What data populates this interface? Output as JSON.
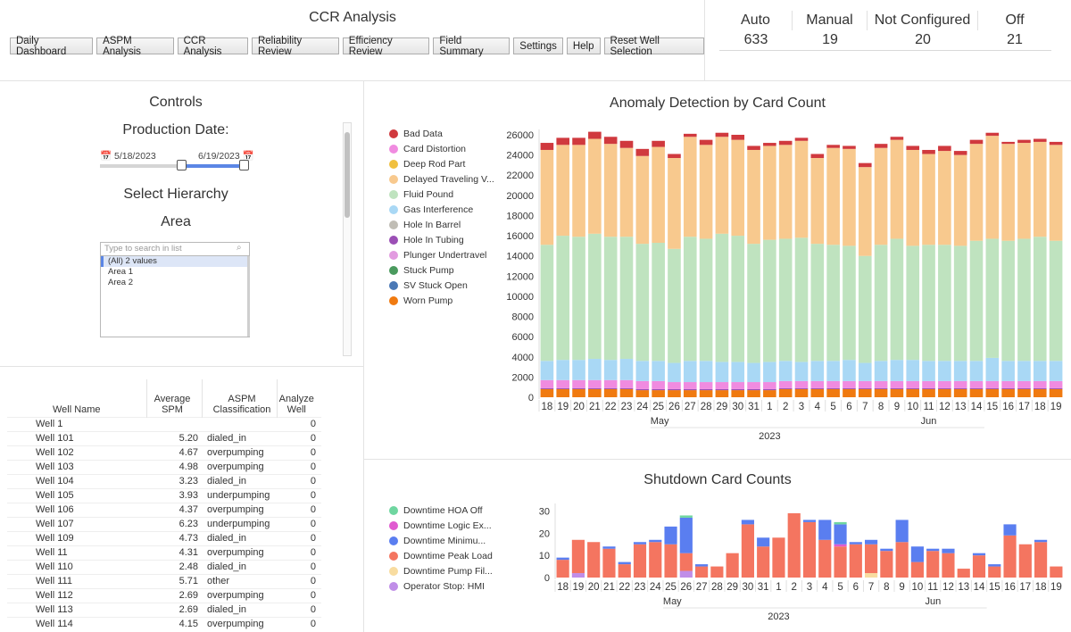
{
  "app_title": "CCR Analysis",
  "nav": [
    "Daily Dashboard",
    "ASPM Analysis",
    "CCR Analysis",
    "Reliability Review",
    "Efficiency Review",
    "Field Summary",
    "Settings",
    "Help",
    "Reset Well Selection"
  ],
  "status": {
    "headers": [
      "Auto",
      "Manual",
      "Not Configured",
      "Off"
    ],
    "values": [
      "633",
      "19",
      "20",
      "21"
    ]
  },
  "controls": {
    "title": "Controls",
    "production_date_label": "Production Date:",
    "date_start": "5/18/2023",
    "date_end": "6/19/2023",
    "hierarchy_label": "Select Hierarchy",
    "area_label": "Area",
    "search_placeholder": "Type to search in list",
    "list_items": [
      "(All) 2 values",
      "Area 1",
      "Area 2"
    ]
  },
  "table": {
    "headers": [
      "Well Name",
      "Average SPM",
      "ASPM Classification",
      "Analyze Well"
    ],
    "rows": [
      [
        "Well 1",
        "",
        "",
        "0"
      ],
      [
        "Well 101",
        "5.20",
        "dialed_in",
        "0"
      ],
      [
        "Well 102",
        "4.67",
        "overpumping",
        "0"
      ],
      [
        "Well 103",
        "4.98",
        "overpumping",
        "0"
      ],
      [
        "Well 104",
        "3.23",
        "dialed_in",
        "0"
      ],
      [
        "Well 105",
        "3.93",
        "underpumping",
        "0"
      ],
      [
        "Well 106",
        "4.37",
        "overpumping",
        "0"
      ],
      [
        "Well 107",
        "6.23",
        "underpumping",
        "0"
      ],
      [
        "Well 109",
        "4.73",
        "dialed_in",
        "0"
      ],
      [
        "Well 11",
        "4.31",
        "overpumping",
        "0"
      ],
      [
        "Well 110",
        "2.48",
        "dialed_in",
        "0"
      ],
      [
        "Well 111",
        "5.71",
        "other",
        "0"
      ],
      [
        "Well 112",
        "2.69",
        "overpumping",
        "0"
      ],
      [
        "Well 113",
        "2.69",
        "dialed_in",
        "0"
      ],
      [
        "Well 114",
        "4.15",
        "overpumping",
        "0"
      ]
    ]
  },
  "chart_data": [
    {
      "type": "bar",
      "title": "Anomaly Detection by Card Count",
      "stacked": true,
      "categories": [
        "18",
        "19",
        "20",
        "21",
        "22",
        "23",
        "24",
        "25",
        "26",
        "27",
        "28",
        "29",
        "30",
        "31",
        "1",
        "2",
        "3",
        "4",
        "5",
        "6",
        "7",
        "8",
        "9",
        "10",
        "11",
        "12",
        "13",
        "14",
        "15",
        "16",
        "17",
        "18",
        "19"
      ],
      "month_labels": [
        "May",
        "Jun"
      ],
      "year_label": "2023",
      "ylim": [
        0,
        26000
      ],
      "yticks": [
        0,
        2000,
        4000,
        6000,
        8000,
        10000,
        12000,
        14000,
        16000,
        18000,
        20000,
        22000,
        24000,
        26000
      ],
      "legend": [
        "Bad Data",
        "Card Distortion",
        "Deep Rod Part",
        "Delayed Traveling V...",
        "Fluid Pound",
        "Gas Interference",
        "Hole In Barrel",
        "Hole In Tubing",
        "Plunger Undertravel",
        "Stuck Pump",
        "SV Stuck Open",
        "Worn Pump"
      ],
      "legend_colors": [
        "#d0393e",
        "#f08be0",
        "#f0c040",
        "#f8c98e",
        "#bfe3bf",
        "#a9d8f5",
        "#c0bdb5",
        "#9b4fb5",
        "#e29be0",
        "#4a9a5e",
        "#4a78b5",
        "#f07a10"
      ],
      "series": [
        {
          "name": "Worn Pump",
          "color": "#f07a10",
          "values": [
            800,
            800,
            800,
            800,
            800,
            800,
            700,
            700,
            700,
            700,
            700,
            700,
            700,
            700,
            700,
            800,
            800,
            800,
            800,
            800,
            800,
            800,
            800,
            800,
            800,
            800,
            800,
            800,
            800,
            800,
            800,
            800,
            800
          ]
        },
        {
          "name": "Hole In Tubing",
          "color": "#9b4fb5",
          "values": [
            100,
            100,
            100,
            100,
            100,
            100,
            100,
            100,
            100,
            100,
            100,
            100,
            100,
            100,
            100,
            100,
            100,
            100,
            100,
            100,
            100,
            100,
            100,
            100,
            100,
            100,
            100,
            100,
            100,
            100,
            100,
            100,
            100
          ]
        },
        {
          "name": "Card Distortion",
          "color": "#f08be0",
          "values": [
            800,
            800,
            800,
            800,
            800,
            800,
            800,
            800,
            700,
            700,
            700,
            700,
            700,
            700,
            700,
            700,
            700,
            700,
            700,
            700,
            700,
            700,
            700,
            700,
            700,
            700,
            700,
            700,
            700,
            700,
            700,
            700,
            700
          ]
        },
        {
          "name": "Gas Interference",
          "color": "#a9d8f5",
          "values": [
            1900,
            2000,
            2000,
            2100,
            2000,
            2100,
            2000,
            2000,
            1900,
            2100,
            2100,
            2000,
            2000,
            1900,
            2000,
            2000,
            1900,
            2000,
            2000,
            2100,
            1800,
            2000,
            2100,
            2100,
            2000,
            2000,
            2000,
            2000,
            2300,
            2000,
            2000,
            2000,
            2000
          ]
        },
        {
          "name": "Fluid Pound",
          "color": "#bfe3bf",
          "values": [
            11500,
            12300,
            12200,
            12400,
            12200,
            12100,
            11600,
            11700,
            11300,
            12300,
            12100,
            12700,
            12500,
            11800,
            12100,
            12100,
            12300,
            11600,
            11500,
            11300,
            10600,
            11500,
            12000,
            11300,
            11500,
            11500,
            11400,
            11900,
            11800,
            11900,
            12100,
            12300,
            11900
          ]
        },
        {
          "name": "Delayed Traveling V...",
          "color": "#f8c98e",
          "values": [
            9400,
            9000,
            9100,
            9400,
            9200,
            8800,
            8700,
            9500,
            9000,
            9900,
            9300,
            9600,
            9500,
            9300,
            9300,
            9300,
            9600,
            8500,
            9600,
            9600,
            8800,
            9600,
            9800,
            9500,
            9000,
            9300,
            9000,
            9600,
            10200,
            9600,
            9500,
            9400,
            9500
          ]
        },
        {
          "name": "Bad Data",
          "color": "#d0393e",
          "values": [
            700,
            700,
            700,
            700,
            700,
            700,
            700,
            600,
            400,
            300,
            500,
            400,
            500,
            400,
            300,
            400,
            300,
            400,
            300,
            300,
            400,
            400,
            300,
            400,
            400,
            500,
            400,
            400,
            300,
            200,
            300,
            300,
            300
          ]
        }
      ]
    },
    {
      "type": "bar",
      "title": "Shutdown Card Counts",
      "stacked": true,
      "categories": [
        "18",
        "19",
        "20",
        "21",
        "22",
        "23",
        "24",
        "25",
        "26",
        "27",
        "28",
        "29",
        "30",
        "31",
        "1",
        "2",
        "3",
        "4",
        "5",
        "6",
        "7",
        "8",
        "9",
        "10",
        "11",
        "12",
        "13",
        "14",
        "15",
        "16",
        "17",
        "18",
        "19"
      ],
      "month_labels": [
        "May",
        "Jun"
      ],
      "year_label": "2023",
      "ylim": [
        0,
        31
      ],
      "yticks": [
        0,
        10,
        20,
        30
      ],
      "legend": [
        "Downtime HOA Off",
        "Downtime Logic Ex...",
        "Downtime Minimu...",
        "Downtime Peak Load",
        "Downtime Pump Fil...",
        "Operator Stop: HMI"
      ],
      "legend_colors": [
        "#6fd6a0",
        "#e05ad0",
        "#5a7ef0",
        "#f47560",
        "#f8dca0",
        "#c08ee8"
      ],
      "series": [
        {
          "name": "Operator Stop: HMI",
          "color": "#c08ee8",
          "values": [
            0,
            2,
            0,
            0,
            0,
            0,
            0,
            0,
            3,
            0,
            0,
            0,
            0,
            0,
            0,
            0,
            0,
            0,
            0,
            0,
            0,
            0,
            0,
            0,
            0,
            0,
            0,
            0,
            0,
            0,
            0,
            0,
            0
          ]
        },
        {
          "name": "Downtime Pump Fil...",
          "color": "#f8dca0",
          "values": [
            0,
            0,
            0,
            0,
            0,
            0,
            0,
            0,
            0,
            0,
            0,
            0,
            0,
            0,
            0,
            0,
            0,
            0,
            0,
            0,
            2,
            0,
            0,
            0,
            0,
            0,
            0,
            0,
            0,
            0,
            0,
            0,
            0
          ]
        },
        {
          "name": "Downtime Peak Load",
          "color": "#f47560",
          "values": [
            8,
            15,
            16,
            13,
            6,
            15,
            16,
            15,
            8,
            5,
            5,
            11,
            24,
            14,
            18,
            29,
            25,
            17,
            14,
            15,
            13,
            12,
            16,
            7,
            12,
            11,
            4,
            10,
            5,
            19,
            15,
            16,
            5
          ]
        },
        {
          "name": "Downtime Logic Ex...",
          "color": "#e05ad0",
          "values": [
            0,
            0,
            0,
            0,
            0,
            0,
            0,
            0,
            0,
            0,
            0,
            0,
            0,
            0,
            0,
            0,
            0,
            0,
            1,
            0,
            0,
            0,
            0,
            0,
            0,
            0,
            0,
            0,
            0,
            0,
            0,
            0,
            0
          ]
        },
        {
          "name": "Downtime Minimu...",
          "color": "#5a7ef0",
          "values": [
            1,
            0,
            0,
            1,
            1,
            1,
            1,
            8,
            16,
            1,
            0,
            0,
            2,
            4,
            0,
            0,
            1,
            9,
            9,
            1,
            2,
            1,
            10,
            7,
            1,
            2,
            0,
            1,
            1,
            5,
            0,
            1,
            0
          ]
        },
        {
          "name": "Downtime HOA Off",
          "color": "#6fd6a0",
          "values": [
            0,
            0,
            0,
            0,
            0,
            0,
            0,
            0,
            1,
            0,
            0,
            0,
            0,
            0,
            0,
            0,
            0,
            0,
            1,
            0,
            0,
            0,
            0,
            0,
            0,
            0,
            0,
            0,
            0,
            0,
            0,
            0,
            0
          ]
        }
      ]
    }
  ]
}
